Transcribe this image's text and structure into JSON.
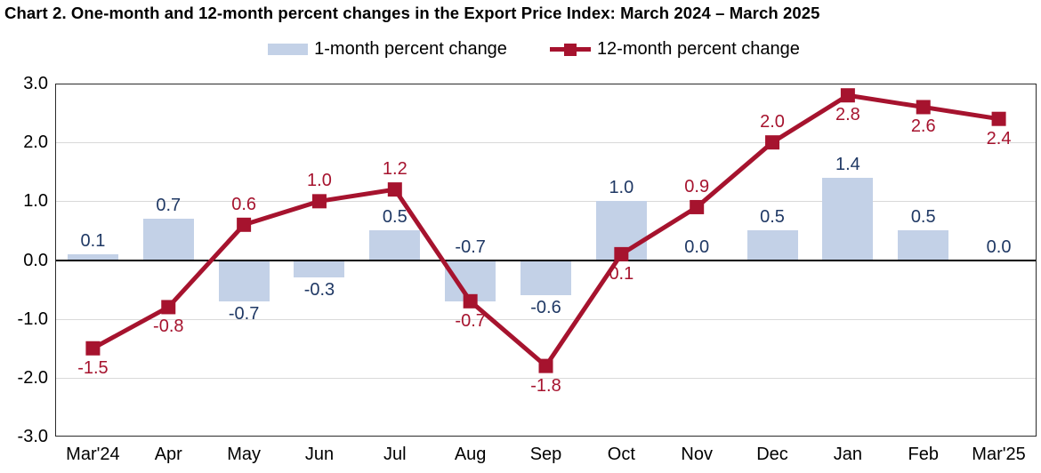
{
  "title": "Chart 2. One-month and 12-month percent changes in the Export Price Index: March 2024 – March 2025",
  "legend": {
    "items": [
      {
        "label": "1-month percent change",
        "swatch": "bar-swatch"
      },
      {
        "label": "12-month percent change",
        "swatch": "line-swatch"
      }
    ]
  },
  "colors": {
    "bar_fill": "#C3D1E7",
    "bar_label": "#1F3864",
    "line": "#A6132E",
    "line_label": "#A6132E",
    "gridline": "#D9D9D9",
    "zero_line": "#000000",
    "axis_text": "#000000"
  },
  "chart_data": {
    "type": "combo",
    "categories": [
      "Mar'24",
      "Apr",
      "May",
      "Jun",
      "Jul",
      "Aug",
      "Sep",
      "Oct",
      "Nov",
      "Dec",
      "Jan",
      "Feb",
      "Mar'25"
    ],
    "series": [
      {
        "name": "1-month percent change",
        "type": "bar",
        "values": [
          0.1,
          0.7,
          -0.7,
          -0.3,
          0.5,
          -0.7,
          -0.6,
          1.0,
          0.0,
          0.5,
          1.4,
          0.5,
          0.0
        ],
        "label_side": [
          "above",
          "above",
          "below",
          "below",
          "above",
          "above",
          "below",
          "above",
          "above",
          "above",
          "above",
          "above",
          "above"
        ]
      },
      {
        "name": "12-month percent change",
        "type": "line",
        "values": [
          -1.5,
          -0.8,
          0.6,
          1.0,
          1.2,
          -0.7,
          -1.8,
          0.1,
          0.9,
          2.0,
          2.8,
          2.6,
          2.4
        ],
        "label_side": [
          "below",
          "below",
          "above",
          "above",
          "above",
          "below",
          "below",
          "below",
          "above",
          "above",
          "below",
          "below",
          "below"
        ]
      }
    ],
    "ylim": [
      -3.0,
      3.0
    ],
    "ytick_labels": [
      "3.0",
      "2.0",
      "1.0",
      "0.0",
      "-1.0",
      "-2.0",
      "-3.0"
    ],
    "grid": true,
    "legend_position": "top-center"
  }
}
